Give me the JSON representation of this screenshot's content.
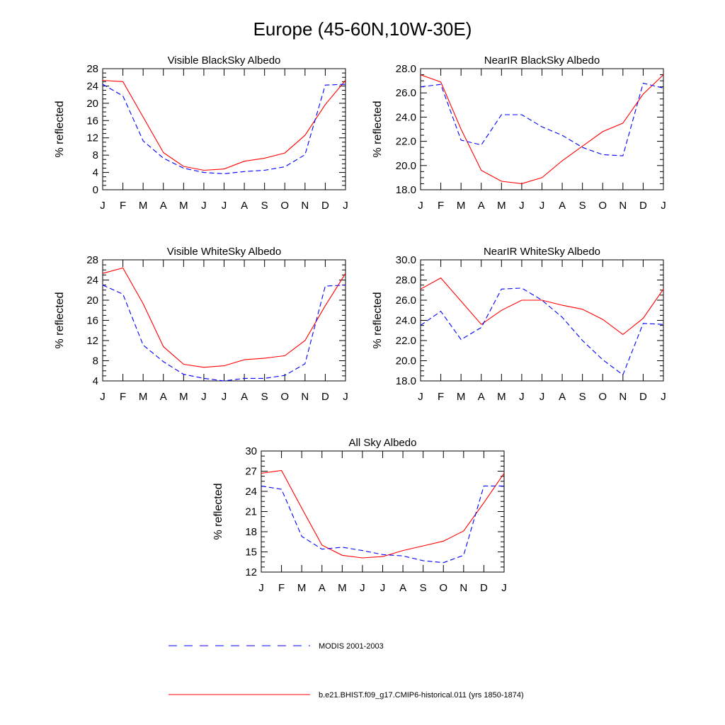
{
  "figure": {
    "title": "Europe (45-60N,10W-30E)",
    "ylabel": "% reflected",
    "month_labels": [
      "J",
      "F",
      "M",
      "A",
      "M",
      "J",
      "J",
      "A",
      "S",
      "O",
      "N",
      "D",
      "J"
    ]
  },
  "legend": {
    "entries": [
      {
        "label": "MODIS 2001-2003",
        "color": "#0000ff",
        "style": "dashed"
      },
      {
        "label": "b.e21.BHIST.f09_g17.CMIP6-historical.011 (yrs 1850-1874)",
        "color": "#ff0000",
        "style": "solid"
      }
    ]
  },
  "chart_data": [
    {
      "type": "line",
      "title": "Visible BlackSky Albedo",
      "ylabel": "% reflected",
      "categories": [
        "J",
        "F",
        "M",
        "A",
        "M",
        "J",
        "J",
        "A",
        "S",
        "O",
        "N",
        "D",
        "J"
      ],
      "ylim": [
        0,
        28
      ],
      "yticks": [
        0,
        4,
        8,
        12,
        16,
        20,
        24,
        28
      ],
      "ytick_labels": [
        "0",
        "4",
        "8",
        "12",
        "16",
        "20",
        "24",
        "28"
      ],
      "series": [
        {
          "values": [
            25.3,
            25.0,
            16.8,
            8.6,
            5.4,
            4.5,
            4.8,
            6.6,
            7.3,
            8.5,
            12.6,
            19.7,
            25.3
          ],
          "color": "#ff0000",
          "style": "solid"
        },
        {
          "values": [
            24.4,
            21.7,
            11.3,
            7.3,
            5.0,
            4.0,
            3.7,
            4.2,
            4.5,
            5.3,
            8.1,
            24.2,
            24.4
          ],
          "color": "#0000ff",
          "style": "dashed"
        }
      ]
    },
    {
      "type": "line",
      "title": "NearIR BlackSky Albedo",
      "ylabel": "% reflected",
      "categories": [
        "J",
        "F",
        "M",
        "A",
        "M",
        "J",
        "J",
        "A",
        "S",
        "O",
        "N",
        "D",
        "J"
      ],
      "ylim": [
        18,
        28
      ],
      "yticks": [
        18,
        20,
        22,
        24,
        26,
        28
      ],
      "ytick_labels": [
        "18.0",
        "20.0",
        "22.0",
        "24.0",
        "26.0",
        "28.0"
      ],
      "series": [
        {
          "values": [
            27.5,
            26.9,
            23.0,
            19.6,
            18.7,
            18.5,
            19.0,
            20.4,
            21.6,
            22.8,
            23.5,
            25.9,
            27.5
          ],
          "color": "#ff0000",
          "style": "solid"
        },
        {
          "values": [
            26.5,
            26.7,
            22.1,
            21.7,
            24.2,
            24.2,
            23.2,
            22.5,
            21.5,
            20.9,
            20.8,
            26.8,
            26.4
          ],
          "color": "#0000ff",
          "style": "dashed"
        }
      ]
    },
    {
      "type": "line",
      "title": "Visible WhiteSky Albedo",
      "ylabel": "% reflected",
      "categories": [
        "J",
        "F",
        "M",
        "A",
        "M",
        "J",
        "J",
        "A",
        "S",
        "O",
        "N",
        "D",
        "J"
      ],
      "ylim": [
        4,
        28
      ],
      "yticks": [
        4,
        8,
        12,
        16,
        20,
        24,
        28
      ],
      "ytick_labels": [
        "4",
        "8",
        "12",
        "16",
        "20",
        "24",
        "28"
      ],
      "series": [
        {
          "values": [
            25.3,
            26.4,
            19.3,
            10.8,
            7.3,
            6.7,
            7.0,
            8.2,
            8.5,
            9.0,
            12.0,
            18.9,
            25.3
          ],
          "color": "#ff0000",
          "style": "solid"
        },
        {
          "values": [
            23.0,
            21.2,
            11.1,
            7.8,
            5.3,
            4.5,
            4.0,
            4.5,
            4.5,
            5.1,
            7.4,
            22.8,
            23.0
          ],
          "color": "#0000ff",
          "style": "dashed"
        }
      ]
    },
    {
      "type": "line",
      "title": "NearIR WhiteSky Albedo",
      "ylabel": "% reflected",
      "categories": [
        "J",
        "F",
        "M",
        "A",
        "M",
        "J",
        "J",
        "A",
        "S",
        "O",
        "N",
        "D",
        "J"
      ],
      "ylim": [
        18,
        30
      ],
      "yticks": [
        18,
        20,
        22,
        24,
        26,
        28,
        30
      ],
      "ytick_labels": [
        "18.0",
        "20.0",
        "22.0",
        "24.0",
        "26.0",
        "28.0",
        "30.0"
      ],
      "series": [
        {
          "values": [
            27.1,
            28.2,
            25.9,
            23.6,
            25.0,
            26.0,
            26.0,
            25.5,
            25.1,
            24.1,
            22.6,
            24.2,
            27.1
          ],
          "color": "#ff0000",
          "style": "solid"
        },
        {
          "values": [
            23.5,
            24.9,
            22.1,
            23.3,
            27.1,
            27.2,
            26.0,
            24.3,
            22.0,
            20.1,
            18.6,
            23.7,
            23.6
          ],
          "color": "#0000ff",
          "style": "dashed"
        }
      ]
    },
    {
      "type": "line",
      "title": "All Sky Albedo",
      "ylabel": "% reflected",
      "categories": [
        "J",
        "F",
        "M",
        "A",
        "M",
        "J",
        "J",
        "A",
        "S",
        "O",
        "N",
        "D",
        "J"
      ],
      "ylim": [
        12,
        30
      ],
      "yticks": [
        12,
        15,
        18,
        21,
        24,
        27,
        30
      ],
      "ytick_labels": [
        "12",
        "15",
        "18",
        "21",
        "24",
        "27",
        "30"
      ],
      "series": [
        {
          "values": [
            26.7,
            27.1,
            21.5,
            16.0,
            14.5,
            14.1,
            14.3,
            15.2,
            15.9,
            16.6,
            18.1,
            22.3,
            26.7
          ],
          "color": "#ff0000",
          "style": "solid"
        },
        {
          "values": [
            24.8,
            24.3,
            17.3,
            15.4,
            15.7,
            15.2,
            14.6,
            14.4,
            13.7,
            13.4,
            14.5,
            24.8,
            24.8
          ],
          "color": "#0000ff",
          "style": "dashed"
        }
      ]
    }
  ]
}
